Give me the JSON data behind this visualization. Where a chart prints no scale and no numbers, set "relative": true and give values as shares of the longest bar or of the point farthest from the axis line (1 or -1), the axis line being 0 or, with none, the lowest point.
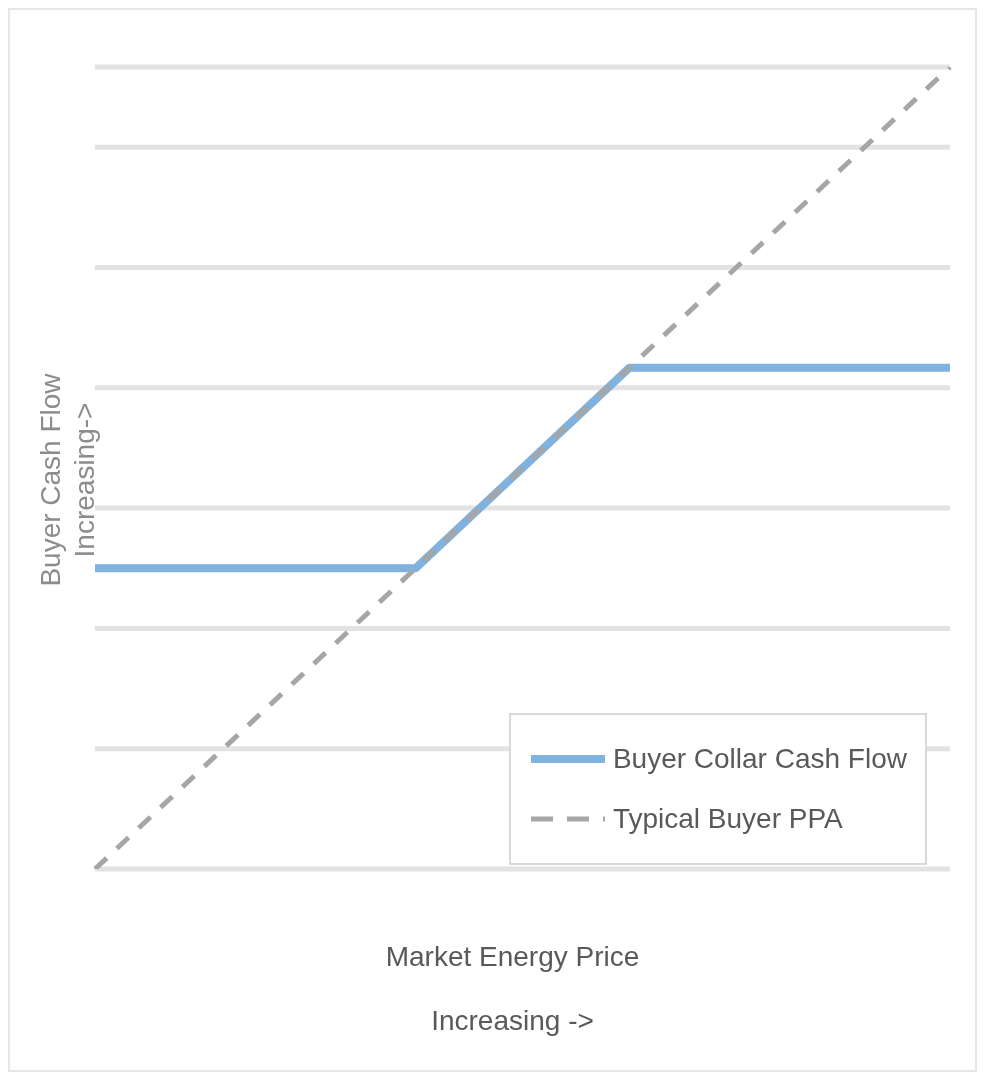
{
  "chart_data": {
    "type": "line",
    "relative": true,
    "xlabel": "Market Energy Price\nIncreasing ->",
    "ylabel": "Buyer Cash Flow\nIncreasing->",
    "categories": [
      null,
      null,
      null,
      null,
      null,
      null,
      null,
      null,
      null
    ],
    "grid": "y",
    "legend": "bottom right",
    "marker": "none",
    "series": [
      {
        "name": "Buyer Collar Cash Flow",
        "color": "#7fb2df",
        "line_style": "solid",
        "values": [
          0.375,
          0.375,
          0.375,
          0.375,
          0.5,
          0.625,
          0.625,
          0.625,
          0.625
        ]
      },
      {
        "name": "Typical Buyer PPA",
        "color": "#a6a6a6",
        "line_style": "dashed",
        "values": [
          0,
          0.125,
          0.25,
          0.375,
          0.5,
          0.625,
          0.75,
          0.875,
          1
        ]
      }
    ]
  }
}
